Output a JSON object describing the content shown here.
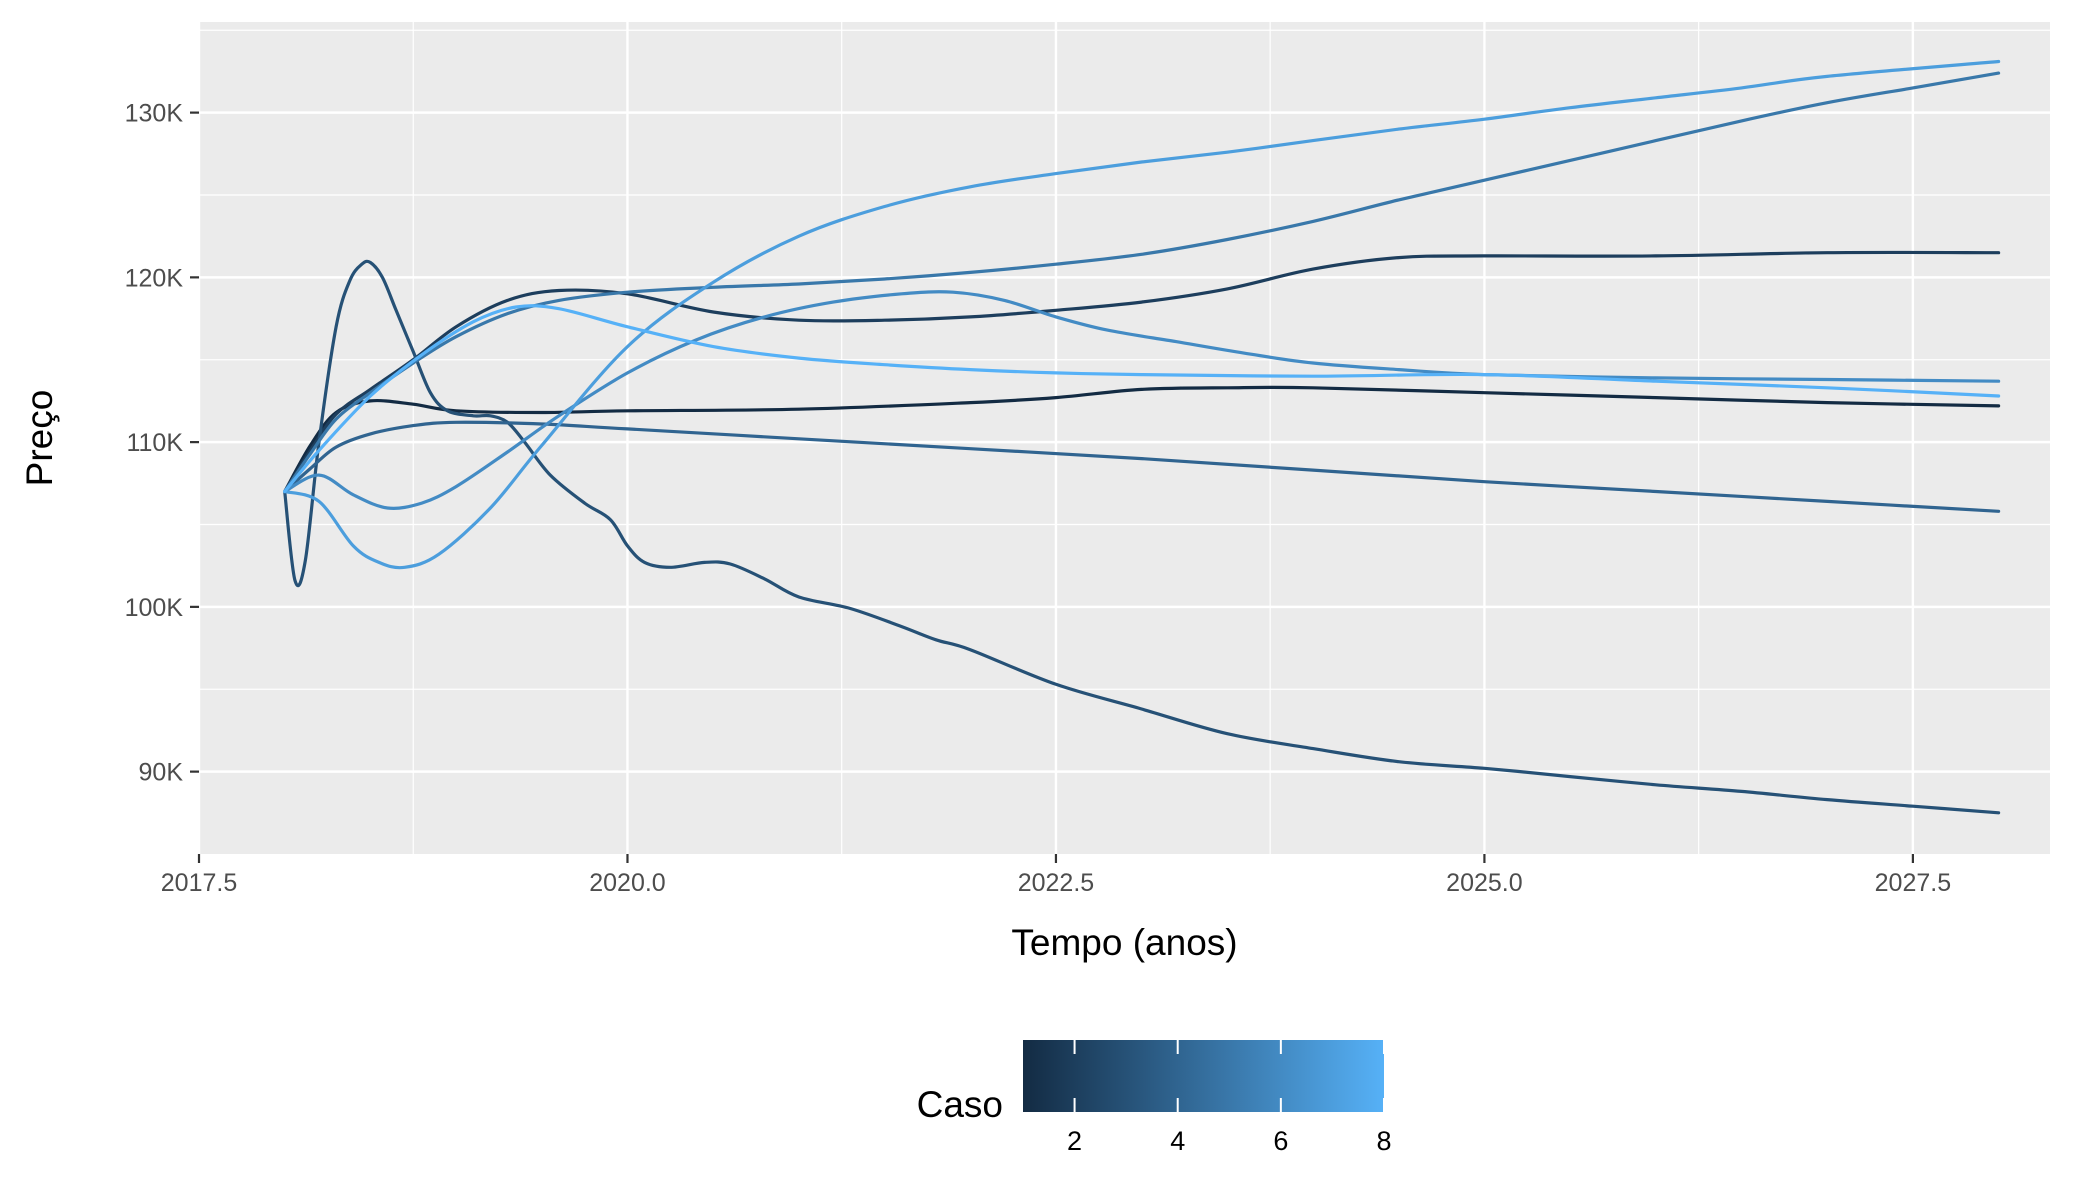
{
  "chart_data": {
    "type": "line",
    "xlabel": "Tempo (anos)",
    "ylabel": "Preço",
    "xlim": [
      2017.5,
      2028.3
    ],
    "ylim": [
      85000,
      135500
    ],
    "x_ticks": [
      2017.5,
      2020.0,
      2022.5,
      2025.0,
      2027.5
    ],
    "x_tick_labels": [
      "2017.5",
      "2020.0",
      "2022.5",
      "2025.0",
      "2027.5"
    ],
    "y_ticks": [
      90000,
      100000,
      110000,
      120000,
      130000
    ],
    "y_tick_labels": [
      "90K",
      "100K",
      "110K",
      "120K",
      "130K"
    ],
    "grid": true,
    "legend": {
      "title": "Caso",
      "type": "colorbar",
      "position": "bottom",
      "range": [
        1,
        8
      ],
      "breaks": [
        2,
        4,
        6,
        8
      ],
      "labels": [
        "2",
        "4",
        "6",
        "8"
      ],
      "low_color": "#132b43",
      "high_color": "#56b1f7"
    },
    "series": [
      {
        "caso": 1,
        "points": [
          [
            2018.0,
            107000
          ],
          [
            2018.15,
            109800
          ],
          [
            2018.3,
            111800
          ],
          [
            2018.5,
            112500
          ],
          [
            2018.75,
            112300
          ],
          [
            2019.0,
            111900
          ],
          [
            2019.5,
            111800
          ],
          [
            2020.0,
            111900
          ],
          [
            2021.0,
            112000
          ],
          [
            2022.0,
            112400
          ],
          [
            2022.5,
            112700
          ],
          [
            2023.0,
            113200
          ],
          [
            2023.5,
            113300
          ],
          [
            2024.0,
            113300
          ],
          [
            2025.0,
            113000
          ],
          [
            2026.0,
            112700
          ],
          [
            2027.0,
            112400
          ],
          [
            2028.0,
            112200
          ]
        ]
      },
      {
        "caso": 2,
        "points": [
          [
            2018.0,
            107000
          ],
          [
            2018.15,
            109500
          ],
          [
            2018.3,
            111700
          ],
          [
            2018.5,
            113200
          ],
          [
            2018.75,
            115000
          ],
          [
            2019.0,
            117000
          ],
          [
            2019.3,
            118600
          ],
          [
            2019.6,
            119200
          ],
          [
            2020.0,
            119000
          ],
          [
            2020.5,
            117900
          ],
          [
            2021.0,
            117400
          ],
          [
            2021.5,
            117400
          ],
          [
            2022.0,
            117600
          ],
          [
            2022.5,
            118000
          ],
          [
            2023.0,
            118500
          ],
          [
            2023.5,
            119300
          ],
          [
            2024.0,
            120500
          ],
          [
            2024.5,
            121200
          ],
          [
            2025.0,
            121300
          ],
          [
            2026.0,
            121300
          ],
          [
            2027.0,
            121500
          ],
          [
            2028.0,
            121500
          ]
        ]
      },
      {
        "caso": 3,
        "points": [
          [
            2018.0,
            107000
          ],
          [
            2018.06,
            101600
          ],
          [
            2018.12,
            102800
          ],
          [
            2018.2,
            110000
          ],
          [
            2018.3,
            117000
          ],
          [
            2018.38,
            119800
          ],
          [
            2018.45,
            120800
          ],
          [
            2018.5,
            120900
          ],
          [
            2018.57,
            120000
          ],
          [
            2018.65,
            118000
          ],
          [
            2018.75,
            115500
          ],
          [
            2018.85,
            113000
          ],
          [
            2018.95,
            111900
          ],
          [
            2019.1,
            111600
          ],
          [
            2019.2,
            111600
          ],
          [
            2019.3,
            111200
          ],
          [
            2019.4,
            110000
          ],
          [
            2019.55,
            108000
          ],
          [
            2019.75,
            106300
          ],
          [
            2019.9,
            105300
          ],
          [
            2020.0,
            103700
          ],
          [
            2020.1,
            102700
          ],
          [
            2020.25,
            102400
          ],
          [
            2020.45,
            102700
          ],
          [
            2020.6,
            102600
          ],
          [
            2020.8,
            101700
          ],
          [
            2021.0,
            100600
          ],
          [
            2021.3,
            99900
          ],
          [
            2021.6,
            98800
          ],
          [
            2021.8,
            98000
          ],
          [
            2022.0,
            97400
          ],
          [
            2022.5,
            95300
          ],
          [
            2023.0,
            93800
          ],
          [
            2023.5,
            92300
          ],
          [
            2024.0,
            91400
          ],
          [
            2024.5,
            90600
          ],
          [
            2025.0,
            90200
          ],
          [
            2025.5,
            89700
          ],
          [
            2026.0,
            89200
          ],
          [
            2026.5,
            88800
          ],
          [
            2027.0,
            88300
          ],
          [
            2027.5,
            87900
          ],
          [
            2028.0,
            87500
          ]
        ]
      },
      {
        "caso": 4,
        "points": [
          [
            2018.0,
            107000
          ],
          [
            2018.15,
            108400
          ],
          [
            2018.3,
            109700
          ],
          [
            2018.5,
            110500
          ],
          [
            2018.75,
            111000
          ],
          [
            2019.0,
            111200
          ],
          [
            2019.5,
            111100
          ],
          [
            2020.0,
            110800
          ],
          [
            2021.0,
            110200
          ],
          [
            2022.0,
            109600
          ],
          [
            2023.0,
            109000
          ],
          [
            2024.0,
            108300
          ],
          [
            2025.0,
            107600
          ],
          [
            2026.0,
            107000
          ],
          [
            2027.0,
            106400
          ],
          [
            2028.0,
            105800
          ]
        ]
      },
      {
        "caso": 5,
        "points": [
          [
            2018.0,
            107000
          ],
          [
            2018.15,
            109300
          ],
          [
            2018.3,
            111400
          ],
          [
            2018.5,
            113000
          ],
          [
            2018.75,
            114800
          ],
          [
            2019.0,
            116400
          ],
          [
            2019.3,
            117800
          ],
          [
            2019.6,
            118600
          ],
          [
            2020.0,
            119100
          ],
          [
            2020.5,
            119400
          ],
          [
            2021.0,
            119600
          ],
          [
            2021.5,
            119900
          ],
          [
            2022.0,
            120300
          ],
          [
            2022.5,
            120800
          ],
          [
            2023.0,
            121400
          ],
          [
            2023.5,
            122300
          ],
          [
            2024.0,
            123400
          ],
          [
            2024.5,
            124700
          ],
          [
            2025.0,
            125900
          ],
          [
            2025.5,
            127100
          ],
          [
            2026.0,
            128300
          ],
          [
            2026.5,
            129500
          ],
          [
            2027.0,
            130600
          ],
          [
            2027.5,
            131500
          ],
          [
            2028.0,
            132400
          ]
        ]
      },
      {
        "caso": 6,
        "points": [
          [
            2018.0,
            107000
          ],
          [
            2018.2,
            108000
          ],
          [
            2018.4,
            106800
          ],
          [
            2018.6,
            106000
          ],
          [
            2018.8,
            106300
          ],
          [
            2019.0,
            107300
          ],
          [
            2019.3,
            109400
          ],
          [
            2019.6,
            111600
          ],
          [
            2020.0,
            114200
          ],
          [
            2020.4,
            116200
          ],
          [
            2020.8,
            117600
          ],
          [
            2021.2,
            118500
          ],
          [
            2021.6,
            119000
          ],
          [
            2021.9,
            119100
          ],
          [
            2022.2,
            118600
          ],
          [
            2022.5,
            117600
          ],
          [
            2022.8,
            116800
          ],
          [
            2023.2,
            116100
          ],
          [
            2023.6,
            115400
          ],
          [
            2024.0,
            114800
          ],
          [
            2024.5,
            114400
          ],
          [
            2025.0,
            114100
          ],
          [
            2026.0,
            113900
          ],
          [
            2027.0,
            113800
          ],
          [
            2028.0,
            113700
          ]
        ]
      },
      {
        "caso": 7,
        "points": [
          [
            2018.0,
            107000
          ],
          [
            2018.2,
            106400
          ],
          [
            2018.4,
            103700
          ],
          [
            2018.55,
            102700
          ],
          [
            2018.7,
            102400
          ],
          [
            2018.9,
            103200
          ],
          [
            2019.2,
            106000
          ],
          [
            2019.5,
            109800
          ],
          [
            2020.0,
            115800
          ],
          [
            2020.5,
            119700
          ],
          [
            2021.0,
            122500
          ],
          [
            2021.5,
            124300
          ],
          [
            2022.0,
            125500
          ],
          [
            2022.5,
            126300
          ],
          [
            2023.0,
            127000
          ],
          [
            2023.5,
            127600
          ],
          [
            2024.0,
            128300
          ],
          [
            2024.5,
            129000
          ],
          [
            2025.0,
            129600
          ],
          [
            2025.5,
            130300
          ],
          [
            2026.0,
            130900
          ],
          [
            2026.5,
            131500
          ],
          [
            2027.0,
            132200
          ],
          [
            2028.0,
            133100
          ]
        ]
      },
      {
        "caso": 8,
        "points": [
          [
            2018.0,
            107000
          ],
          [
            2018.2,
            109500
          ],
          [
            2018.5,
            112800
          ],
          [
            2018.8,
            115300
          ],
          [
            2019.1,
            117300
          ],
          [
            2019.35,
            118200
          ],
          [
            2019.6,
            118100
          ],
          [
            2020.0,
            117000
          ],
          [
            2020.5,
            115800
          ],
          [
            2021.0,
            115100
          ],
          [
            2021.5,
            114700
          ],
          [
            2022.0,
            114400
          ],
          [
            2022.5,
            114200
          ],
          [
            2023.0,
            114100
          ],
          [
            2024.0,
            114000
          ],
          [
            2025.0,
            114100
          ],
          [
            2026.0,
            113700
          ],
          [
            2027.0,
            113300
          ],
          [
            2028.0,
            112800
          ]
        ]
      }
    ]
  }
}
